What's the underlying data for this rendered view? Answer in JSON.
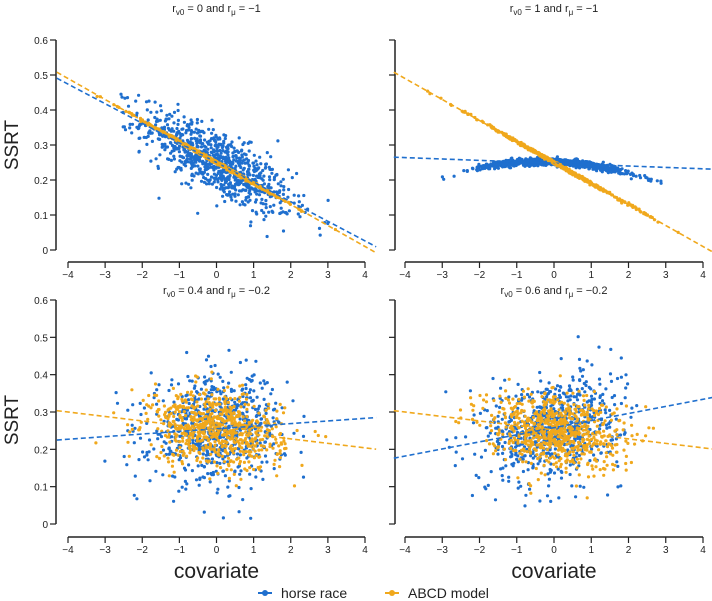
{
  "chart_data": [
    {
      "type": "scatter",
      "title_parts": {
        "a": "r",
        "a_sub": "v0",
        "b": " = 0 and ",
        "c": "r",
        "c_sub": "μ",
        "d": " = −1"
      },
      "ylabel": "SSRT",
      "xlabel": "",
      "xlim": [
        -4,
        4
      ],
      "ylim": [
        0,
        0.6
      ],
      "xticks": [
        "−4",
        "−3",
        "−2",
        "−1",
        "0",
        "1",
        "2",
        "3",
        "4"
      ],
      "yticks": [
        "0",
        "0.1",
        "0.2",
        "0.3",
        "0.4",
        "0.5",
        "0.6"
      ],
      "series": [
        {
          "name": "horse race",
          "points": {
            "n": 900,
            "x_sd": 1.0,
            "intercept": 0.25,
            "slope": -0.056,
            "noise_sd": 0.045,
            "curvature": 0
          },
          "fit": {
            "intercept": 0.25,
            "slope": -0.056
          }
        },
        {
          "name": "ABCD model",
          "points": {
            "n": 500,
            "x_sd": 1.0,
            "intercept": 0.25,
            "slope": -0.06,
            "noise_sd": 0.002,
            "curvature": 0
          },
          "fit": {
            "intercept": 0.25,
            "slope": -0.06
          }
        }
      ]
    },
    {
      "type": "scatter",
      "title_parts": {
        "a": "r",
        "a_sub": "v0",
        "b": " = 1 and ",
        "c": "r",
        "c_sub": "μ",
        "d": " = −1"
      },
      "ylabel": "",
      "xlabel": "",
      "xlim": [
        -4,
        4
      ],
      "ylim": [
        0,
        0.6
      ],
      "xticks": [
        "−4",
        "−3",
        "−2",
        "−1",
        "0",
        "1",
        "2",
        "3",
        "4"
      ],
      "yticks": [],
      "series": [
        {
          "name": "horse race",
          "points": {
            "n": 900,
            "x_sd": 1.0,
            "intercept": 0.252,
            "slope": -0.004,
            "noise_sd": 0.005,
            "curvature": -0.006
          },
          "fit": {
            "intercept": 0.248,
            "slope": -0.004
          }
        },
        {
          "name": "ABCD model",
          "points": {
            "n": 600,
            "x_sd": 1.1,
            "intercept": 0.25,
            "slope": -0.06,
            "noise_sd": 0.002,
            "curvature": 0
          },
          "fit": {
            "intercept": 0.25,
            "slope": -0.06
          }
        }
      ]
    },
    {
      "type": "scatter",
      "title_parts": {
        "a": "r",
        "a_sub": "v0",
        "b": " = 0.4 and ",
        "c": "r",
        "c_sub": "μ",
        "d": " = −0.2"
      },
      "ylabel": "SSRT",
      "xlabel": "covariate",
      "xlim": [
        -4,
        4
      ],
      "ylim": [
        0,
        0.6
      ],
      "xticks": [
        "−4",
        "−3",
        "−2",
        "−1",
        "0",
        "1",
        "2",
        "3",
        "4"
      ],
      "yticks": [
        "0",
        "0.1",
        "0.2",
        "0.3",
        "0.4",
        "0.5",
        "0.6"
      ],
      "series": [
        {
          "name": "horse race",
          "points": {
            "n": 700,
            "x_sd": 0.9,
            "intercept": 0.255,
            "slope": 0.007,
            "noise_sd": 0.07,
            "curvature": 0
          },
          "fit": {
            "intercept": 0.255,
            "slope": 0.007
          }
        },
        {
          "name": "ABCD model",
          "points": {
            "n": 700,
            "x_sd": 0.9,
            "intercept": 0.252,
            "slope": -0.012,
            "noise_sd": 0.05,
            "curvature": 0
          },
          "fit": {
            "intercept": 0.252,
            "slope": -0.012
          }
        }
      ]
    },
    {
      "type": "scatter",
      "title_parts": {
        "a": "r",
        "a_sub": "v0",
        "b": " = 0.6 and ",
        "c": "r",
        "c_sub": "μ",
        "d": " = −0.2"
      },
      "ylabel": "",
      "xlabel": "covariate",
      "xlim": [
        -4,
        4
      ],
      "ylim": [
        0,
        0.6
      ],
      "xticks": [
        "−4",
        "−3",
        "−2",
        "−1",
        "0",
        "1",
        "2",
        "3",
        "4"
      ],
      "yticks": [],
      "series": [
        {
          "name": "horse race",
          "points": {
            "n": 700,
            "x_sd": 0.9,
            "intercept": 0.258,
            "slope": 0.019,
            "noise_sd": 0.07,
            "curvature": 0
          },
          "fit": {
            "intercept": 0.258,
            "slope": 0.019
          }
        },
        {
          "name": "ABCD model",
          "points": {
            "n": 700,
            "x_sd": 0.9,
            "intercept": 0.252,
            "slope": -0.012,
            "noise_sd": 0.05,
            "curvature": 0
          },
          "fit": {
            "intercept": 0.252,
            "slope": -0.012
          }
        }
      ]
    }
  ],
  "legend": {
    "placement": "bottom-center",
    "items": [
      {
        "label": "horse race",
        "color": "#1f6fce"
      },
      {
        "label": "ABCD model",
        "color": "#f0a81c"
      }
    ]
  },
  "colors": {
    "horse race": "#1f6fce",
    "ABCD model": "#f0a81c"
  }
}
